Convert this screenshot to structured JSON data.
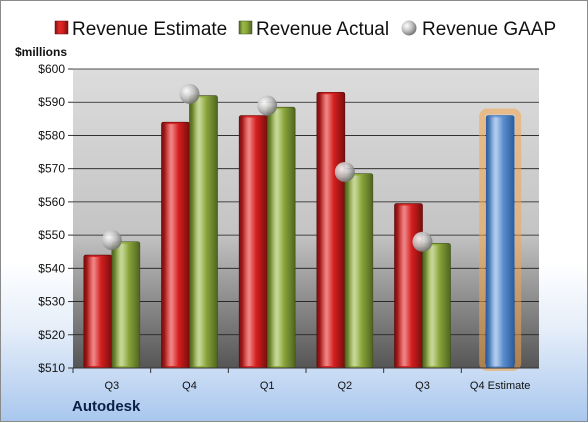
{
  "company": "Autodesk",
  "chart_data": {
    "type": "bar",
    "ylabel": "$millions",
    "ylim": [
      510,
      600
    ],
    "yticks": [
      "$510",
      "$520",
      "$530",
      "$540",
      "$550",
      "$560",
      "$570",
      "$580",
      "$590",
      "$600"
    ],
    "categories": [
      "Q3",
      "Q4",
      "Q1",
      "Q2",
      "Q3",
      "Q4 Estimate"
    ],
    "legend_position": "top",
    "series": [
      {
        "name": "Revenue Estimate",
        "mark": "bar",
        "color": "#c81e1e",
        "values": [
          544,
          584,
          586,
          593,
          559.5,
          null
        ]
      },
      {
        "name": "Revenue Actual",
        "mark": "bar",
        "color": "#8aa53a",
        "values": [
          548,
          592,
          588.5,
          568.5,
          547.5,
          null
        ]
      },
      {
        "name": "Revenue GAAP",
        "mark": "point",
        "color": "#b5b5b5",
        "values": [
          548.5,
          592.5,
          589,
          569,
          548,
          null
        ]
      }
    ],
    "forecast": {
      "category": "Q4 Estimate",
      "value": 586,
      "color": "#5b8fd0",
      "glow": "#f5a64a"
    },
    "grid": true
  }
}
